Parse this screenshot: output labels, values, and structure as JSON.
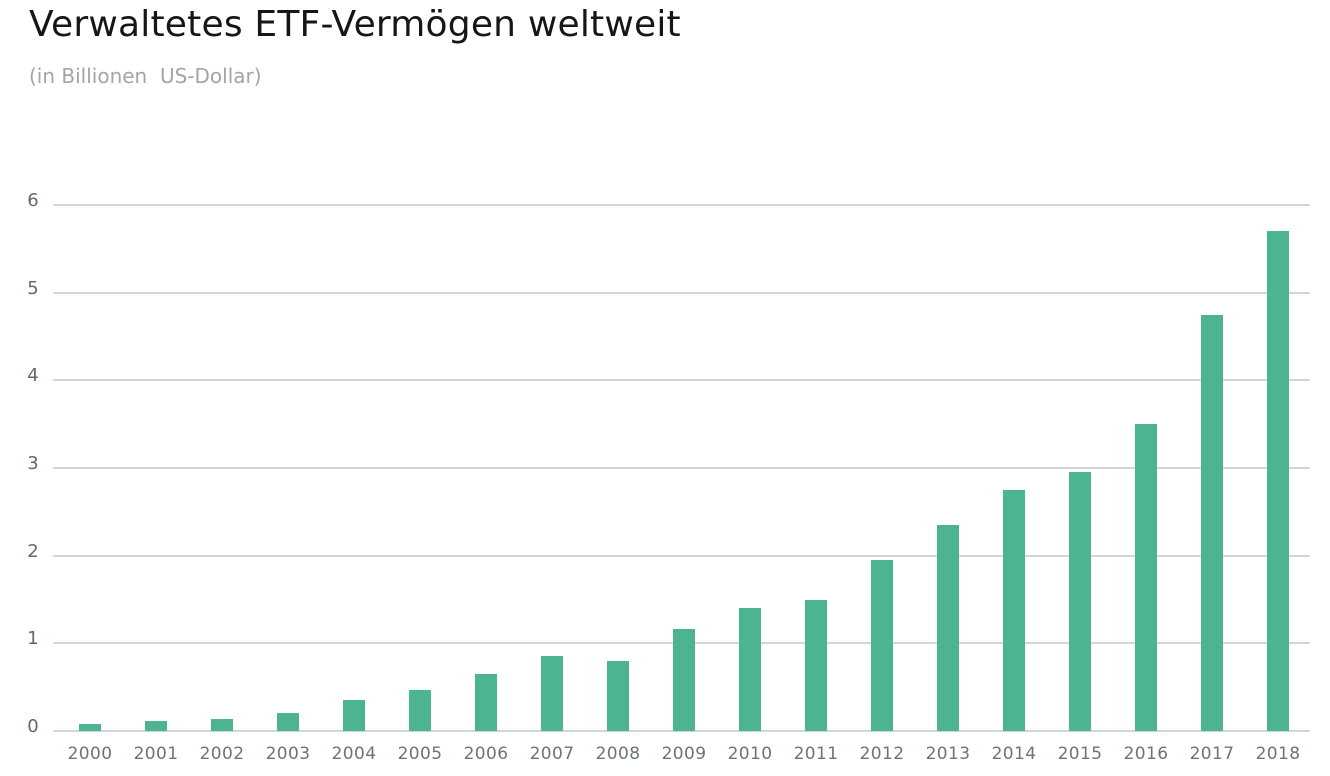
{
  "header": {
    "title": "Verwaltetes ETF-Vermögen weltweit",
    "subtitle": "(in Billionen  US-Dollar)"
  },
  "chart_data": {
    "type": "bar",
    "title": "Verwaltetes ETF-Vermögen weltweit",
    "subtitle": "(in Billionen US-Dollar)",
    "unit": "Billionen US-Dollar",
    "categories": [
      "2000",
      "2001",
      "2002",
      "2003",
      "2004",
      "2005",
      "2006",
      "2007",
      "2008",
      "2009",
      "2010",
      "2011",
      "2012",
      "2013",
      "2014",
      "2015",
      "2016",
      "2017",
      "2018"
    ],
    "values": [
      0.08,
      0.11,
      0.14,
      0.21,
      0.35,
      0.47,
      0.65,
      0.85,
      0.8,
      1.16,
      1.4,
      1.5,
      1.95,
      2.35,
      2.75,
      2.95,
      3.5,
      4.75,
      5.7
    ],
    "xlabel": "",
    "ylabel": "",
    "ylim": [
      0,
      6
    ],
    "y_ticks": [
      0,
      1,
      2,
      3,
      4,
      5,
      6
    ],
    "grid": true,
    "legend": "none",
    "colors": {
      "bar": "#4db491",
      "gridline": "#cfd7de",
      "y_tick_label": "#5d6a76",
      "x_tick_label": "#68747f",
      "title": "#161616",
      "subtitle": "#a4a4a4",
      "background": "#ffffff"
    }
  }
}
